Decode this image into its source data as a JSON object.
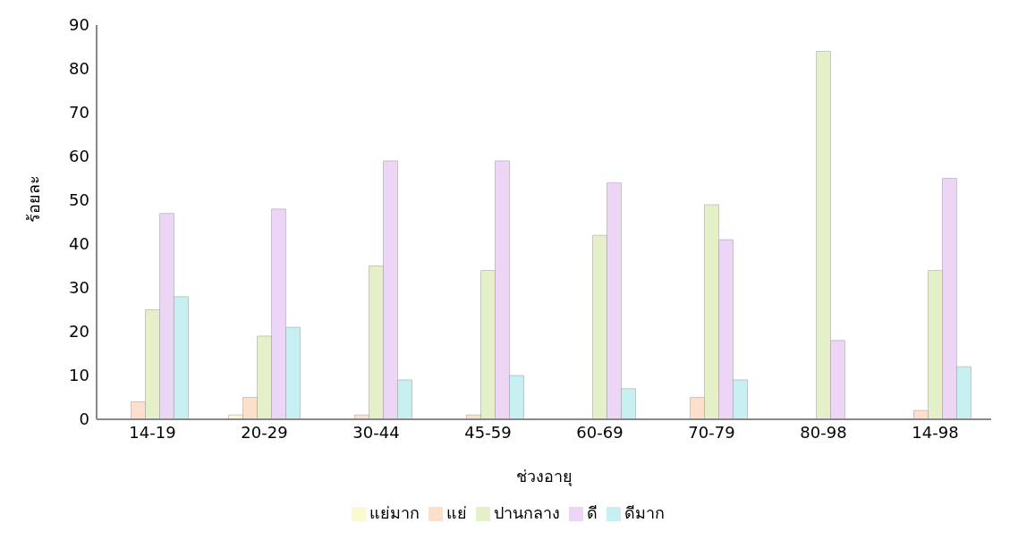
{
  "chart_data": {
    "type": "bar",
    "xlabel": "ช่วงอายุ",
    "ylabel": "ร้อยละ",
    "categories": [
      "14-19",
      "20-29",
      "30-44",
      "45-59",
      "60-69",
      "70-79",
      "80-98",
      "14-98"
    ],
    "series": [
      {
        "name": "แย่มาก",
        "color": "#fafad2",
        "values": [
          0,
          1,
          0,
          0,
          0,
          0,
          0,
          0
        ]
      },
      {
        "name": "แย่",
        "color": "#fde0cc",
        "values": [
          4,
          5,
          1,
          1,
          0,
          5,
          0,
          2
        ]
      },
      {
        "name": "ปานกลาง",
        "color": "#e6f0c8",
        "values": [
          25,
          19,
          35,
          34,
          42,
          49,
          84,
          34
        ]
      },
      {
        "name": "ดี",
        "color": "#ecd5f5",
        "values": [
          47,
          48,
          59,
          59,
          54,
          41,
          18,
          55
        ]
      },
      {
        "name": "ดีมาก",
        "color": "#c8f0f0",
        "values": [
          28,
          21,
          9,
          10,
          7,
          9,
          0,
          12
        ]
      }
    ],
    "ylim": [
      0,
      90
    ],
    "yticks": [
      0,
      10,
      20,
      30,
      40,
      50,
      60,
      70,
      80,
      90
    ],
    "grid": false,
    "legend": "bottom"
  }
}
